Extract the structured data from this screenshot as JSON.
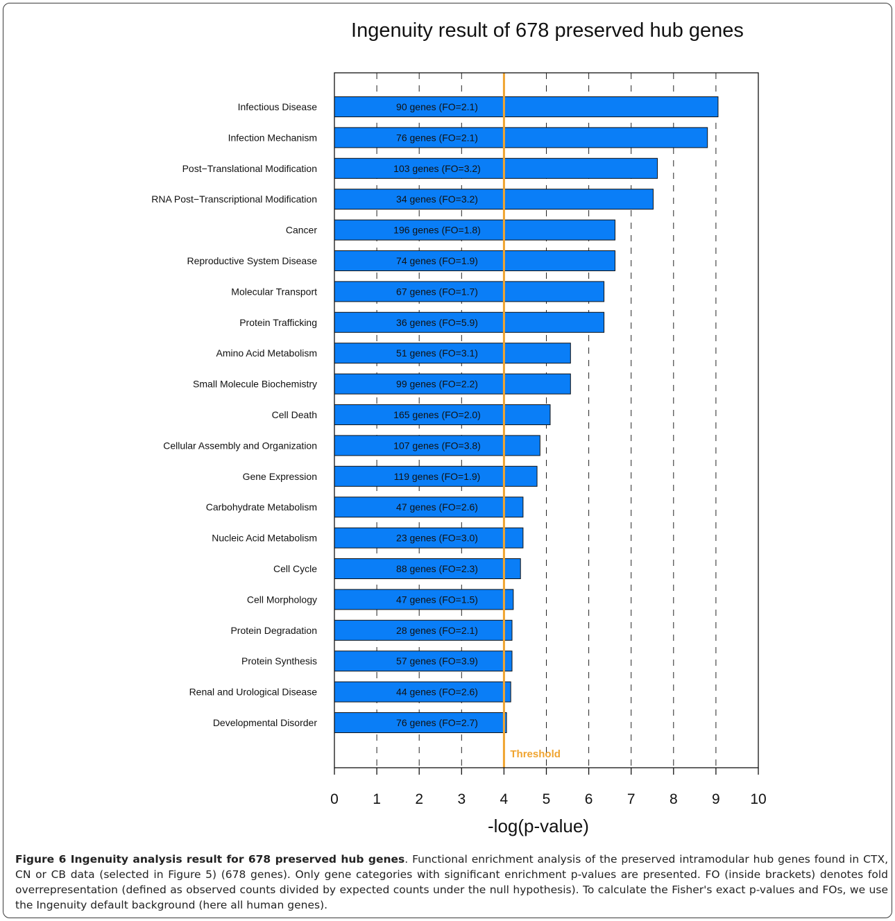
{
  "chart_data": {
    "type": "bar",
    "orientation": "horizontal",
    "title": "Ingenuity result of 678 preserved hub genes",
    "xlabel": "-log(p-value)",
    "ylabel": "",
    "xlim": [
      0,
      10
    ],
    "xticks": [
      "0",
      "1",
      "2",
      "3",
      "4",
      "5",
      "6",
      "7",
      "8",
      "9",
      "10"
    ],
    "grid": "vertical dashed",
    "bar_color": "#0a7ef7",
    "threshold": {
      "value": 4,
      "label": "Threshold",
      "color": "#f0a430"
    },
    "categories": [
      "Infectious Disease",
      "Infection Mechanism",
      "Post−Translational Modification",
      "RNA Post−Transcriptional Modification",
      "Cancer",
      "Reproductive System Disease",
      "Molecular Transport",
      "Protein Trafficking",
      "Amino Acid Metabolism",
      "Small Molecule Biochemistry",
      "Cell Death",
      "Cellular Assembly and Organization",
      "Gene Expression",
      "Carbohydrate Metabolism",
      "Nucleic Acid Metabolism",
      "Cell Cycle",
      "Cell Morphology",
      "Protein Degradation",
      "Protein Synthesis",
      "Renal and Urological Disease",
      "Developmental Disorder"
    ],
    "values": [
      9.05,
      8.8,
      7.62,
      7.52,
      6.62,
      6.62,
      6.36,
      6.36,
      5.57,
      5.57,
      5.09,
      4.85,
      4.78,
      4.45,
      4.45,
      4.39,
      4.22,
      4.19,
      4.19,
      4.16,
      4.06
    ],
    "bar_labels": [
      "90 genes (FO=2.1)",
      "76 genes (FO=2.1)",
      "103 genes (FO=3.2)",
      "34 genes (FO=3.2)",
      "196 genes (FO=1.8)",
      "74 genes (FO=1.9)",
      "67 genes (FO=1.7)",
      "36 genes (FO=5.9)",
      "51 genes (FO=3.1)",
      "99 genes (FO=2.2)",
      "165 genes (FO=2.0)",
      "107 genes (FO=3.8)",
      "119 genes (FO=1.9)",
      "47 genes (FO=2.6)",
      "23 genes (FO=3.0)",
      "88 genes (FO=2.3)",
      "47 genes (FO=1.5)",
      "28 genes (FO=2.1)",
      "57 genes (FO=3.9)",
      "44 genes (FO=2.6)",
      "76 genes (FO=2.7)"
    ]
  },
  "caption": {
    "label": "Figure 6 Ingenuity analysis result for 678 preserved hub genes",
    "text": ". Functional enrichment analysis of the preserved intramodular hub genes found in CTX, CN or CB data (selected in Figure 5) (678 genes). Only gene categories with significant enrichment p-values are presented. FO (inside brackets) denotes fold overrepresentation (defined as observed counts divided by expected counts under the null hypothesis). To calculate the Fisher's exact p-values and FOs, we use the Ingenuity default background (here all human genes)."
  }
}
